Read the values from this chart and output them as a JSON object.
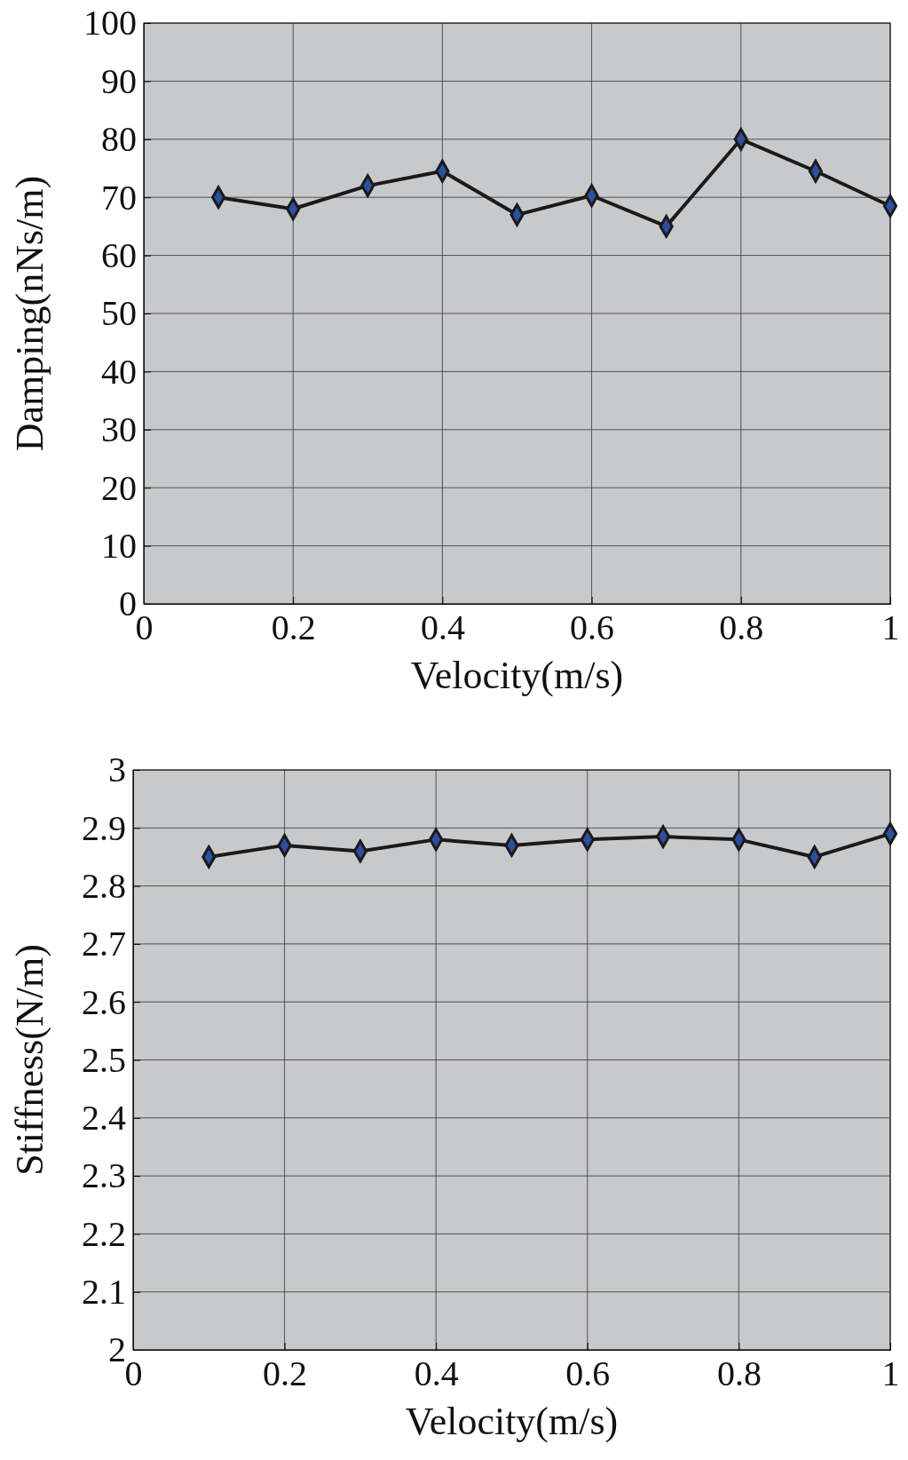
{
  "chart_data": [
    {
      "type": "line",
      "xlabel": "Velocity(m/s)",
      "ylabel": "Damping(nNs/m)",
      "x": [
        0.1,
        0.2,
        0.3,
        0.4,
        0.5,
        0.6,
        0.7,
        0.8,
        0.9,
        1.0
      ],
      "series": [
        {
          "color": "#1a1a1a",
          "values": [
            70,
            68,
            72,
            74.5,
            67,
            70.3,
            65,
            80,
            74.5,
            68.5
          ]
        }
      ],
      "xlim": [
        0,
        1
      ],
      "xticks": [
        0,
        0.2,
        0.4,
        0.6,
        0.8,
        1
      ],
      "ylim": [
        0,
        100
      ],
      "yticks": [
        0,
        10,
        20,
        30,
        40,
        50,
        60,
        70,
        80,
        90,
        100
      ],
      "grid": true,
      "marker": "diamond",
      "line_style": "solid"
    },
    {
      "type": "line",
      "xlabel": "Velocity(m/s)",
      "ylabel": "Stiffness(N/m)",
      "x": [
        0.1,
        0.2,
        0.3,
        0.4,
        0.5,
        0.6,
        0.7,
        0.8,
        0.9,
        1.0
      ],
      "series": [
        {
          "color": "#1a1a1a",
          "values": [
            2.85,
            2.87,
            2.86,
            2.88,
            2.87,
            2.88,
            2.885,
            2.88,
            2.85,
            2.89
          ]
        }
      ],
      "xlim": [
        0,
        1
      ],
      "xticks": [
        0,
        0.2,
        0.4,
        0.6,
        0.8,
        1
      ],
      "ylim": [
        2,
        3
      ],
      "yticks": [
        2,
        2.1,
        2.2,
        2.3,
        2.4,
        2.5,
        2.6,
        2.7,
        2.8,
        2.9,
        3
      ],
      "grid": true,
      "marker": "diamond",
      "line_style": "solid"
    }
  ]
}
